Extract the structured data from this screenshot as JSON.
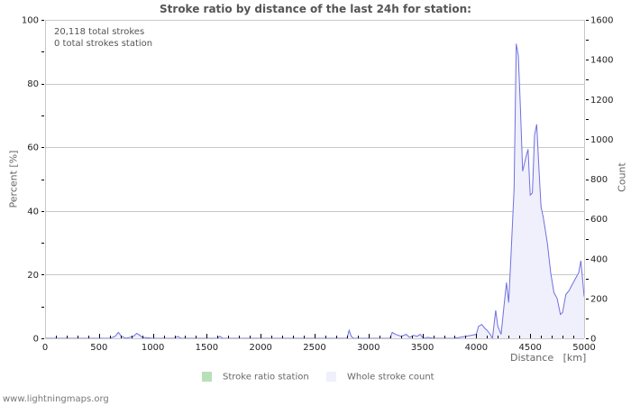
{
  "header": {
    "title": "Stroke ratio by distance of the last 24h for station:"
  },
  "info": {
    "total_strokes": "20,118 total strokes",
    "station_strokes": "0 total strokes station"
  },
  "axes": {
    "left_label": "Percent   [%]",
    "right_label": "Count",
    "x_label": "Distance   [km]"
  },
  "legend": {
    "items": [
      {
        "label": "Stroke ratio station",
        "color": "#b8e0b8"
      },
      {
        "label": "Whole stroke count",
        "color": "#f0f0fc"
      }
    ]
  },
  "footer": {
    "text": "www.lightningmaps.org"
  },
  "colors": {
    "line": "#7070e0",
    "fill": "#f0f0fc",
    "grid": "#c8c8c8"
  },
  "chart_data": {
    "type": "area",
    "title": "Stroke ratio by distance of the last 24h for station:",
    "xlabel": "Distance [km]",
    "ylabel_left": "Percent [%]",
    "ylabel_right": "Count",
    "xlim": [
      0,
      5000
    ],
    "ylim_left": [
      0,
      100
    ],
    "ylim_right": [
      0,
      1600
    ],
    "x_ticks": [
      0,
      500,
      1000,
      1500,
      2000,
      2500,
      3000,
      3500,
      4000,
      4500,
      5000
    ],
    "y_ticks_left": [
      0,
      20,
      40,
      60,
      80,
      100
    ],
    "y_ticks_right": [
      0,
      200,
      400,
      600,
      800,
      1000,
      1200,
      1400,
      1600
    ],
    "grid": true,
    "legend_position": "bottom",
    "annotations": [
      "20,118 total strokes",
      "0 total strokes station"
    ],
    "series": [
      {
        "name": "Stroke ratio station",
        "axis": "left",
        "x": [],
        "values": []
      },
      {
        "name": "Whole stroke count",
        "axis": "right",
        "x": [
          0,
          600,
          650,
          680,
          710,
          750,
          820,
          850,
          880,
          900,
          1000,
          1200,
          1230,
          1260,
          1600,
          1620,
          1650,
          2800,
          2820,
          2840,
          2860,
          3200,
          3220,
          3250,
          3280,
          3300,
          3350,
          3380,
          3420,
          3450,
          3480,
          3500,
          3520,
          3550,
          3600,
          3800,
          3850,
          3900,
          3950,
          4000,
          4020,
          4050,
          4080,
          4100,
          4130,
          4150,
          4180,
          4200,
          4230,
          4260,
          4280,
          4300,
          4320,
          4350,
          4370,
          4390,
          4410,
          4430,
          4460,
          4480,
          4500,
          4520,
          4540,
          4560,
          4580,
          4600,
          4620,
          4640,
          4660,
          4690,
          4720,
          4750,
          4780,
          4800,
          4830,
          4860,
          4890,
          4920,
          4950,
          4970,
          5000
        ],
        "values": [
          0,
          0,
          10,
          30,
          10,
          0,
          10,
          25,
          15,
          5,
          0,
          0,
          10,
          0,
          0,
          10,
          0,
          0,
          40,
          10,
          0,
          0,
          30,
          20,
          15,
          10,
          20,
          5,
          15,
          10,
          20,
          5,
          0,
          5,
          0,
          0,
          5,
          10,
          15,
          20,
          60,
          70,
          50,
          40,
          20,
          0,
          140,
          60,
          20,
          180,
          280,
          180,
          400,
          750,
          1480,
          1420,
          1150,
          840,
          910,
          950,
          720,
          730,
          1020,
          1075,
          860,
          660,
          610,
          545,
          475,
          330,
          230,
          200,
          120,
          130,
          220,
          240,
          270,
          300,
          330,
          390,
          210
        ]
      }
    ]
  }
}
